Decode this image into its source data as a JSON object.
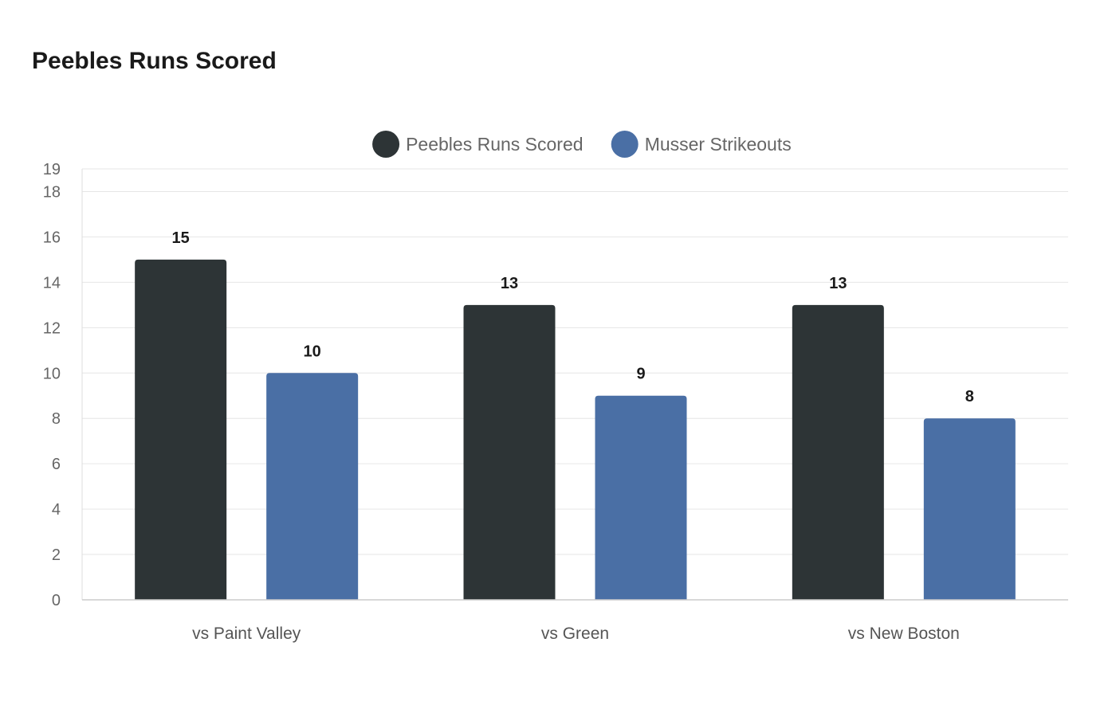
{
  "chart_data": {
    "type": "bar",
    "title": "Peebles Runs Scored",
    "categories": [
      "vs Paint Valley",
      "vs Green",
      "vs New Boston"
    ],
    "series": [
      {
        "name": "Peebles Runs Scored",
        "values": [
          15,
          13,
          13
        ],
        "color": "#2d3436"
      },
      {
        "name": "Musser Strikeouts",
        "values": [
          10,
          9,
          8
        ],
        "color": "#4a6fa5"
      }
    ],
    "y_ticks": [
      0,
      2,
      4,
      6,
      8,
      10,
      12,
      14,
      16,
      18,
      19
    ],
    "ylim": [
      0,
      19
    ],
    "legend": "top-center",
    "grid": true,
    "xlabel": "",
    "ylabel": ""
  }
}
